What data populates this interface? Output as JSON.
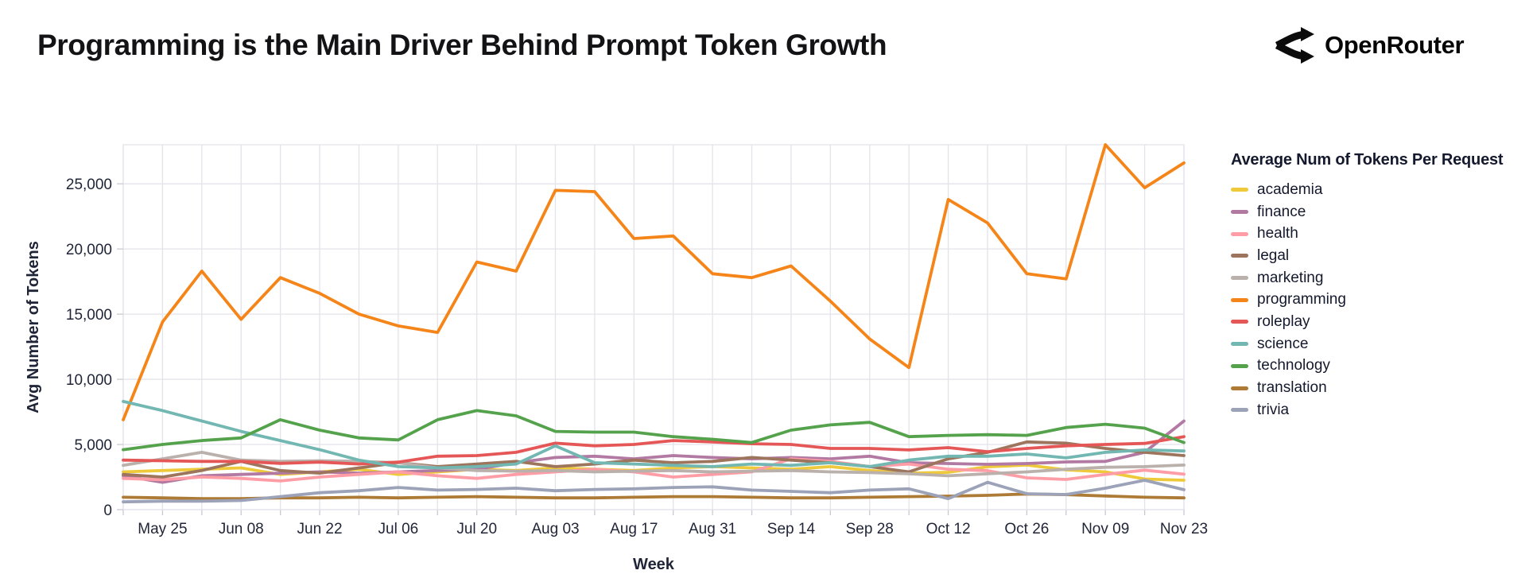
{
  "header": {
    "title": "Programming is the Main Driver Behind Prompt Token Growth",
    "logo_text": "OpenRouter",
    "logo_icon": "openrouter-fork-arrows-icon"
  },
  "colors": {
    "title_text": "#131316",
    "axis_text": "#1f2437",
    "grid": "#e3e3ea",
    "tick": "#c9c9d2",
    "background": "#ffffff"
  },
  "chart_data": {
    "type": "line",
    "title": "",
    "xlabel": "Week",
    "ylabel": "Avg Number of Tokens",
    "legend_title": "Average Num of Tokens Per Request",
    "legend_position": "right",
    "grid": true,
    "ylim": [
      0,
      28000
    ],
    "y_ticks": [
      {
        "value": 0,
        "label": "0"
      },
      {
        "value": 5000,
        "label": "5,000"
      },
      {
        "value": 10000,
        "label": "10,000"
      },
      {
        "value": 15000,
        "label": "15,000"
      },
      {
        "value": 20000,
        "label": "20,000"
      },
      {
        "value": 25000,
        "label": "25,000"
      }
    ],
    "x": [
      "May 18",
      "May 25",
      "Jun 01",
      "Jun 08",
      "Jun 15",
      "Jun 22",
      "Jun 29",
      "Jul 06",
      "Jul 13",
      "Jul 20",
      "Jul 27",
      "Aug 03",
      "Aug 10",
      "Aug 17",
      "Aug 24",
      "Aug 31",
      "Sep 07",
      "Sep 14",
      "Sep 21",
      "Sep 28",
      "Oct 05",
      "Oct 12",
      "Oct 19",
      "Oct 26",
      "Nov 02",
      "Nov 09",
      "Nov 16",
      "Nov 23"
    ],
    "x_ticks": [
      {
        "index": 1,
        "label": "May 25"
      },
      {
        "index": 3,
        "label": "Jun 08"
      },
      {
        "index": 5,
        "label": "Jun 22"
      },
      {
        "index": 7,
        "label": "Jul 06"
      },
      {
        "index": 9,
        "label": "Jul 20"
      },
      {
        "index": 11,
        "label": "Aug 03"
      },
      {
        "index": 13,
        "label": "Aug 17"
      },
      {
        "index": 15,
        "label": "Aug 31"
      },
      {
        "index": 17,
        "label": "Sep 14"
      },
      {
        "index": 19,
        "label": "Sep 28"
      },
      {
        "index": 21,
        "label": "Oct 12"
      },
      {
        "index": 23,
        "label": "Oct 26"
      },
      {
        "index": 25,
        "label": "Nov 09"
      },
      {
        "index": 27,
        "label": "Nov 23"
      }
    ],
    "series": [
      {
        "name": "academia",
        "color": "#eeca3b",
        "values": [
          2900,
          3000,
          3100,
          3200,
          2700,
          2900,
          3100,
          2700,
          2900,
          3100,
          3000,
          3200,
          3100,
          3000,
          3200,
          3300,
          3200,
          3100,
          3300,
          3000,
          2800,
          2870,
          3290,
          3420,
          3050,
          2900,
          2350,
          2260
        ]
      },
      {
        "name": "finance",
        "color": "#b279a2",
        "values": [
          2600,
          2100,
          2600,
          2700,
          2800,
          2900,
          2800,
          2900,
          3000,
          3100,
          3600,
          4000,
          4100,
          3900,
          4150,
          4000,
          3900,
          4000,
          3900,
          4100,
          3600,
          3540,
          3480,
          3540,
          3660,
          3700,
          4400,
          6800
        ]
      },
      {
        "name": "health",
        "color": "#ff9da6",
        "values": [
          2400,
          2300,
          2500,
          2400,
          2200,
          2500,
          2700,
          2900,
          2600,
          2400,
          2700,
          2900,
          3100,
          2900,
          2500,
          2700,
          2900,
          3900,
          3700,
          3300,
          3500,
          3100,
          2990,
          2440,
          2320,
          2700,
          3030,
          2720
        ]
      },
      {
        "name": "legal",
        "color": "#9d755d",
        "values": [
          2700,
          2500,
          3000,
          3700,
          3000,
          2800,
          3200,
          3600,
          3300,
          3500,
          3700,
          3300,
          3500,
          3800,
          3600,
          3700,
          4000,
          3800,
          3600,
          3300,
          2900,
          3900,
          4400,
          5200,
          5100,
          4700,
          4400,
          4150
        ]
      },
      {
        "name": "marketing",
        "color": "#bab0ac",
        "values": [
          3400,
          3900,
          4400,
          3800,
          3700,
          3750,
          3700,
          3600,
          3200,
          3000,
          2950,
          3000,
          2900,
          2950,
          3000,
          2900,
          2950,
          3000,
          2900,
          2850,
          2750,
          2600,
          2750,
          2900,
          3100,
          3250,
          3300,
          3420
        ]
      },
      {
        "name": "programming",
        "color": "#f58518",
        "values": [
          6900,
          14400,
          18300,
          14600,
          17800,
          16600,
          15000,
          14100,
          13600,
          19000,
          18300,
          24500,
          24400,
          20800,
          21000,
          18100,
          17800,
          18700,
          16000,
          13100,
          10900,
          23800,
          22000,
          18100,
          17700,
          28000,
          24700,
          26600
        ]
      },
      {
        "name": "roleplay",
        "color": "#e45756",
        "values": [
          3800,
          3750,
          3700,
          3700,
          3550,
          3650,
          3500,
          3650,
          4100,
          4150,
          4400,
          5100,
          4900,
          5000,
          5300,
          5200,
          5060,
          5000,
          4700,
          4700,
          4580,
          4760,
          4450,
          4700,
          4900,
          5000,
          5080,
          5600
        ]
      },
      {
        "name": "science",
        "color": "#72b7b2",
        "values": [
          8300,
          7600,
          6800,
          6000,
          5300,
          4600,
          3800,
          3300,
          3200,
          3300,
          3500,
          4900,
          3600,
          3500,
          3400,
          3300,
          3500,
          3400,
          3600,
          3300,
          3800,
          4100,
          4100,
          4270,
          3970,
          4400,
          4580,
          4500
        ]
      },
      {
        "name": "technology",
        "color": "#54a24b",
        "values": [
          4600,
          5000,
          5300,
          5500,
          6900,
          6100,
          5500,
          5350,
          6900,
          7600,
          7200,
          6000,
          5950,
          5950,
          5600,
          5400,
          5150,
          6100,
          6500,
          6700,
          5600,
          5700,
          5750,
          5700,
          6300,
          6550,
          6250,
          5150
        ]
      },
      {
        "name": "translation",
        "color": "#ad7b35",
        "values": [
          950,
          900,
          850,
          850,
          900,
          900,
          950,
          900,
          950,
          1000,
          950,
          900,
          900,
          950,
          1000,
          1000,
          950,
          900,
          900,
          950,
          1000,
          1040,
          1100,
          1200,
          1150,
          1050,
          950,
          900
        ]
      },
      {
        "name": "trivia",
        "color": "#9ca3b8",
        "values": [
          600,
          650,
          650,
          700,
          1000,
          1300,
          1450,
          1700,
          1500,
          1550,
          1650,
          1450,
          1550,
          1600,
          1700,
          1750,
          1500,
          1400,
          1300,
          1500,
          1600,
          850,
          2100,
          1220,
          1160,
          1650,
          2260,
          1530
        ]
      }
    ]
  }
}
